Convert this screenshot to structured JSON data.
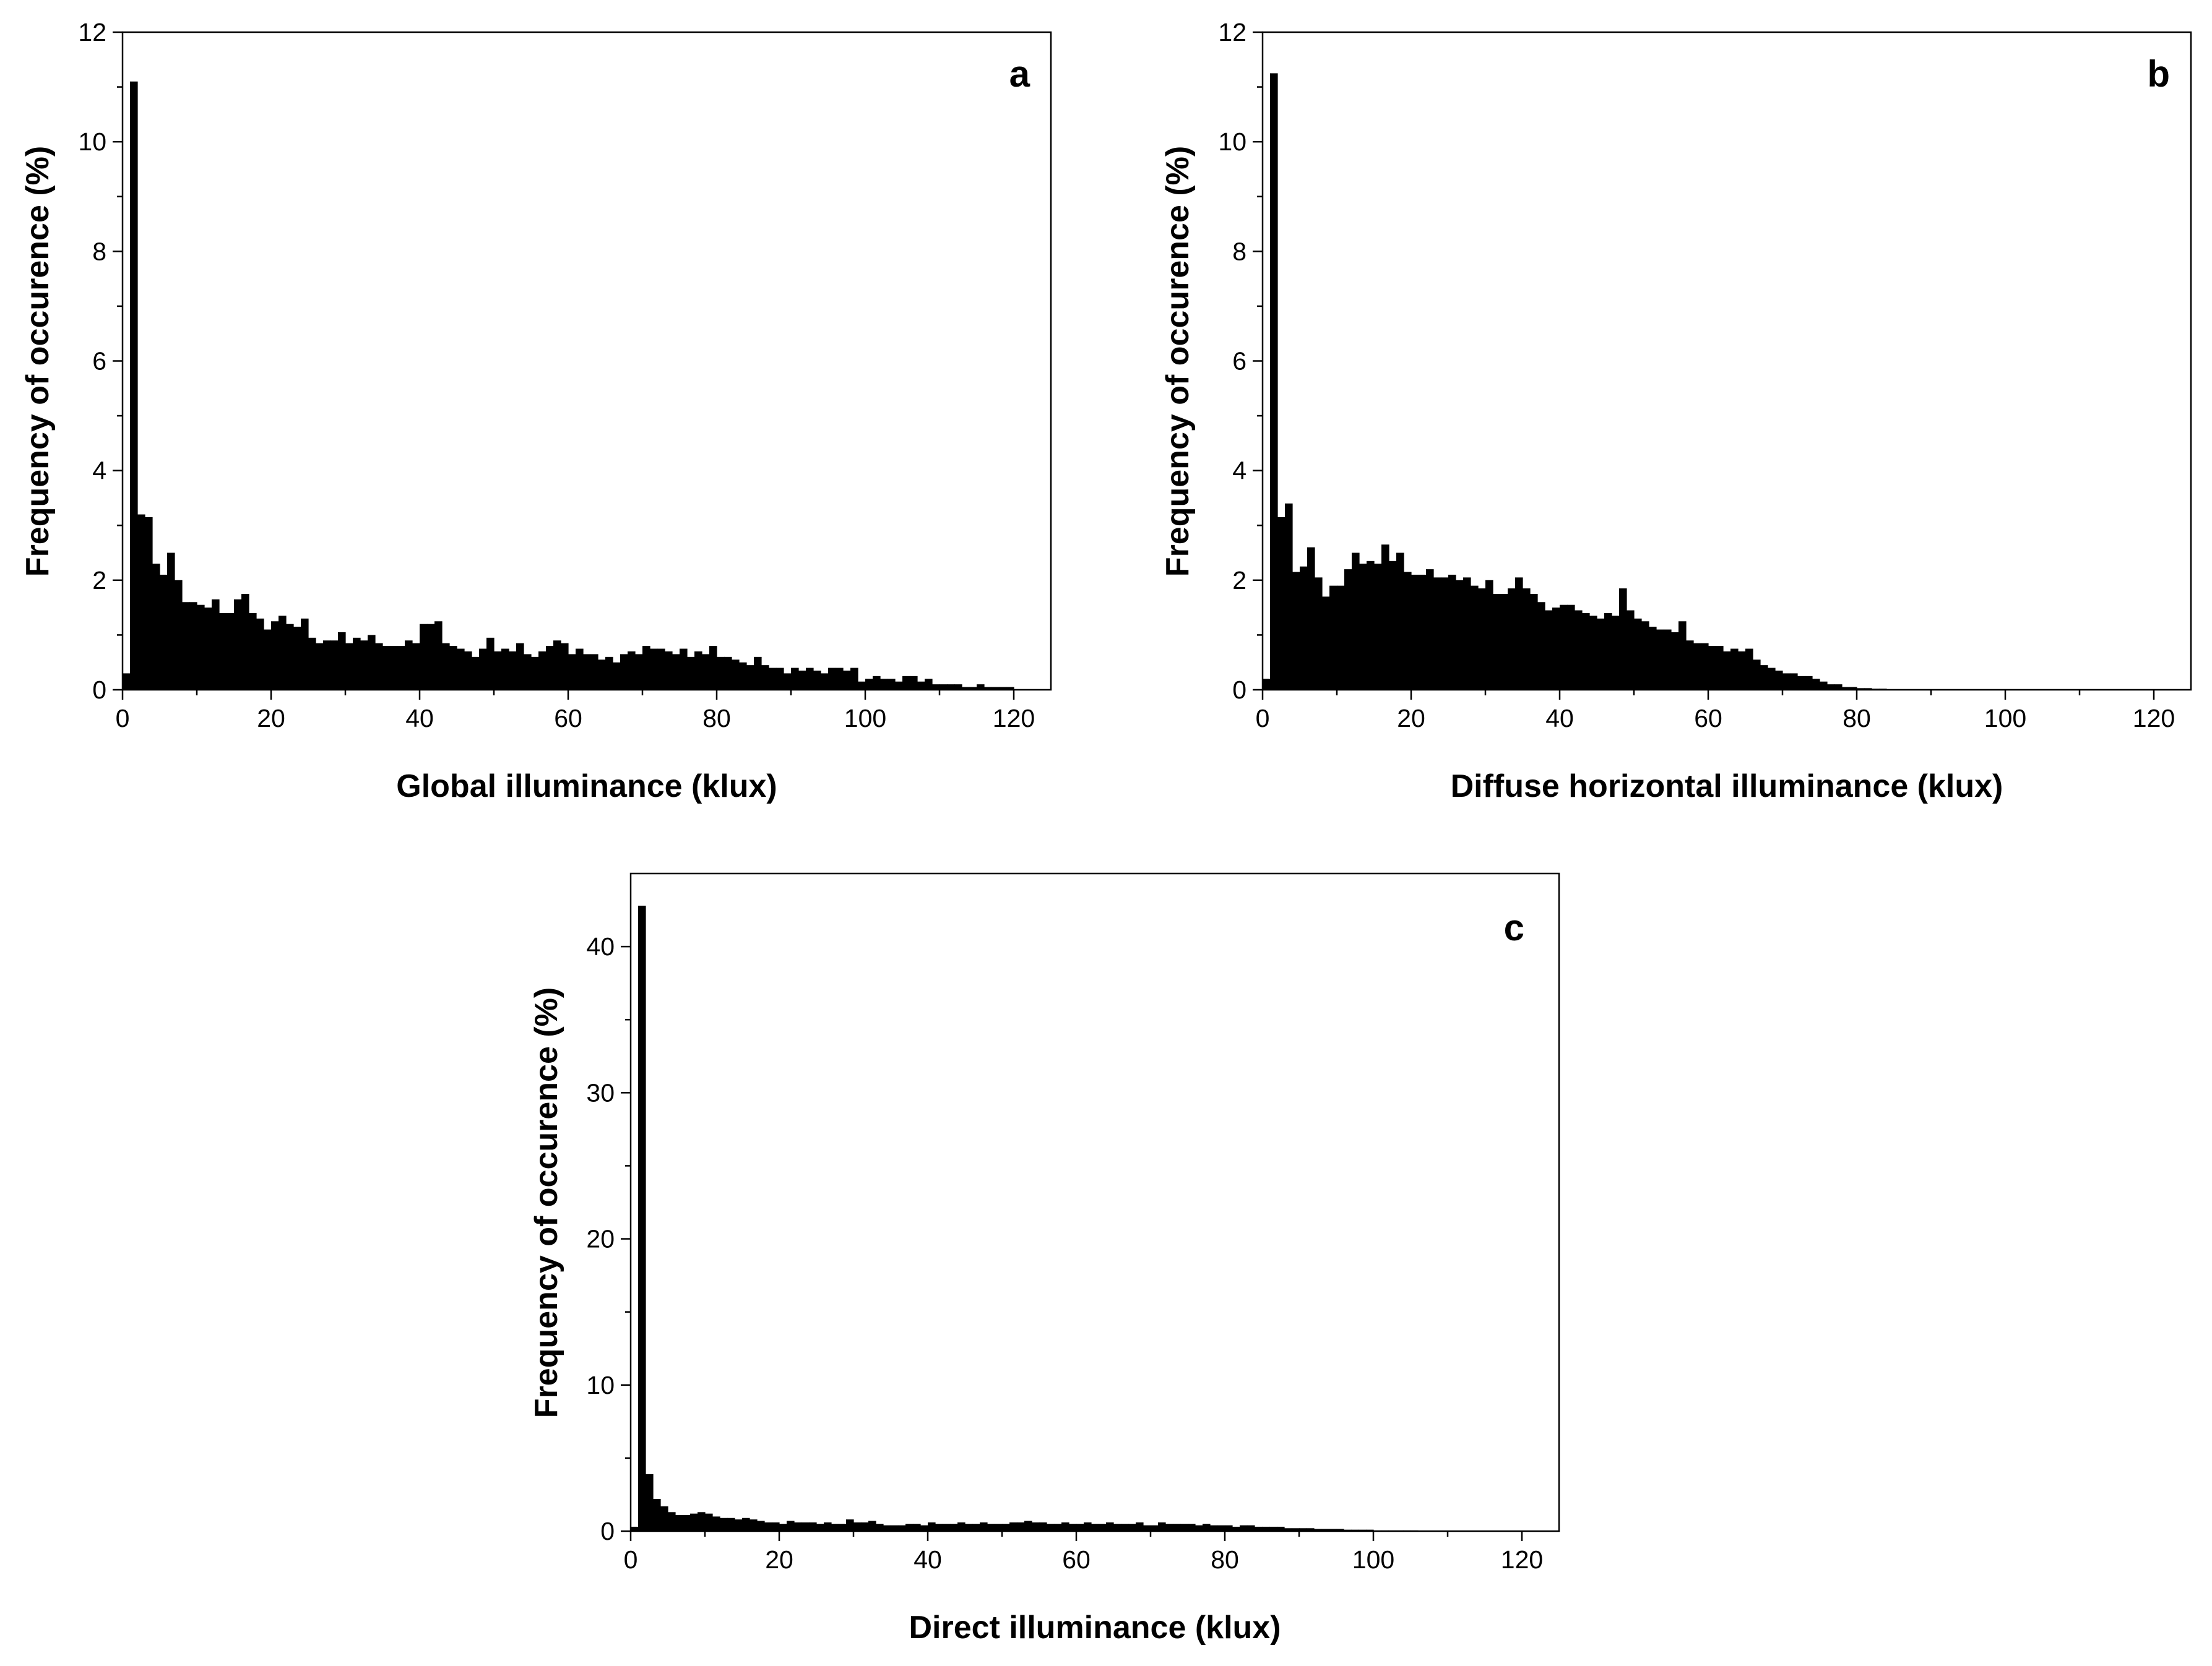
{
  "chart_data": [
    {
      "panel": "a",
      "type": "bar",
      "xlabel": "Global illuminance (klux)",
      "ylabel": "Frequency of occurence (%)",
      "xlim": [
        0,
        125
      ],
      "ylim": [
        0,
        12
      ],
      "xticks": [
        0,
        20,
        40,
        60,
        80,
        100,
        120
      ],
      "yticks": [
        0,
        2,
        4,
        6,
        8,
        10,
        12
      ],
      "bin_width": 1,
      "x_start": 0,
      "values": [
        0.3,
        11.1,
        3.2,
        3.15,
        2.3,
        2.1,
        2.5,
        2.0,
        1.6,
        1.6,
        1.55,
        1.5,
        1.65,
        1.4,
        1.4,
        1.65,
        1.75,
        1.4,
        1.3,
        1.1,
        1.25,
        1.35,
        1.2,
        1.15,
        1.3,
        0.95,
        0.85,
        0.9,
        0.9,
        1.05,
        0.85,
        0.95,
        0.9,
        1.0,
        0.85,
        0.8,
        0.8,
        0.8,
        0.9,
        0.85,
        1.2,
        1.2,
        1.25,
        0.85,
        0.8,
        0.75,
        0.7,
        0.6,
        0.75,
        0.95,
        0.7,
        0.75,
        0.7,
        0.85,
        0.65,
        0.6,
        0.7,
        0.8,
        0.9,
        0.85,
        0.65,
        0.75,
        0.65,
        0.65,
        0.55,
        0.6,
        0.5,
        0.65,
        0.7,
        0.65,
        0.8,
        0.75,
        0.75,
        0.7,
        0.65,
        0.75,
        0.6,
        0.7,
        0.65,
        0.8,
        0.6,
        0.6,
        0.55,
        0.5,
        0.45,
        0.6,
        0.45,
        0.4,
        0.4,
        0.3,
        0.4,
        0.35,
        0.4,
        0.35,
        0.3,
        0.4,
        0.4,
        0.35,
        0.4,
        0.15,
        0.2,
        0.25,
        0.2,
        0.2,
        0.15,
        0.25,
        0.25,
        0.15,
        0.2,
        0.1,
        0.1,
        0.1,
        0.1,
        0.05,
        0.05,
        0.1,
        0.05,
        0.05,
        0.05,
        0.05,
        0.0,
        0.0,
        0.0,
        0.0,
        0.0
      ]
    },
    {
      "panel": "b",
      "type": "bar",
      "xlabel": "Diffuse horizontal illuminance (klux)",
      "ylabel": "Frequency of occurence (%)",
      "xlim": [
        0,
        125
      ],
      "ylim": [
        0,
        12
      ],
      "xticks": [
        0,
        20,
        40,
        60,
        80,
        100,
        120
      ],
      "yticks": [
        0,
        2,
        4,
        6,
        8,
        10,
        12
      ],
      "bin_width": 1,
      "x_start": 0,
      "values": [
        0.2,
        11.25,
        3.15,
        3.4,
        2.15,
        2.25,
        2.6,
        2.05,
        1.7,
        1.9,
        1.9,
        2.2,
        2.5,
        2.3,
        2.35,
        2.3,
        2.65,
        2.35,
        2.5,
        2.15,
        2.1,
        2.1,
        2.2,
        2.05,
        2.05,
        2.1,
        2.0,
        2.05,
        1.9,
        1.85,
        2.0,
        1.75,
        1.75,
        1.85,
        2.05,
        1.85,
        1.75,
        1.6,
        1.45,
        1.5,
        1.55,
        1.55,
        1.45,
        1.4,
        1.35,
        1.3,
        1.4,
        1.35,
        1.85,
        1.45,
        1.3,
        1.25,
        1.15,
        1.1,
        1.1,
        1.05,
        1.25,
        0.9,
        0.85,
        0.85,
        0.8,
        0.8,
        0.7,
        0.75,
        0.7,
        0.75,
        0.55,
        0.45,
        0.4,
        0.35,
        0.3,
        0.3,
        0.25,
        0.25,
        0.2,
        0.15,
        0.1,
        0.1,
        0.05,
        0.05,
        0.03,
        0.03,
        0.02,
        0.02,
        0.01,
        0.01,
        0.0
      ]
    },
    {
      "panel": "c",
      "type": "bar",
      "xlabel": "Direct illuminance (klux)",
      "ylabel": "Frequency of occurence (%)",
      "xlim": [
        0,
        125
      ],
      "ylim": [
        0,
        45
      ],
      "xticks": [
        0,
        20,
        40,
        60,
        80,
        100,
        120
      ],
      "yticks": [
        0,
        10,
        20,
        30,
        40
      ],
      "bin_width": 1,
      "x_start": 0,
      "values": [
        0.3,
        42.8,
        3.9,
        2.2,
        1.7,
        1.3,
        1.1,
        1.1,
        1.2,
        1.3,
        1.2,
        1.0,
        0.9,
        0.9,
        0.8,
        0.9,
        0.8,
        0.7,
        0.6,
        0.6,
        0.5,
        0.7,
        0.6,
        0.6,
        0.6,
        0.5,
        0.6,
        0.5,
        0.5,
        0.8,
        0.6,
        0.6,
        0.7,
        0.5,
        0.4,
        0.4,
        0.4,
        0.5,
        0.5,
        0.4,
        0.6,
        0.5,
        0.5,
        0.5,
        0.6,
        0.5,
        0.5,
        0.6,
        0.5,
        0.5,
        0.5,
        0.6,
        0.6,
        0.7,
        0.6,
        0.6,
        0.5,
        0.5,
        0.6,
        0.5,
        0.5,
        0.6,
        0.5,
        0.5,
        0.6,
        0.5,
        0.5,
        0.5,
        0.6,
        0.4,
        0.4,
        0.6,
        0.5,
        0.5,
        0.5,
        0.5,
        0.4,
        0.5,
        0.4,
        0.4,
        0.4,
        0.3,
        0.4,
        0.4,
        0.3,
        0.3,
        0.3,
        0.3,
        0.2,
        0.2,
        0.2,
        0.2,
        0.15,
        0.15,
        0.15,
        0.15,
        0.1,
        0.1,
        0.1,
        0.1,
        0.05,
        0.05,
        0.05,
        0.05,
        0.05,
        0.05,
        0.03,
        0.03,
        0.03,
        0.03,
        0.02,
        0.02,
        0.02,
        0.01,
        0.01,
        0.0
      ]
    }
  ]
}
